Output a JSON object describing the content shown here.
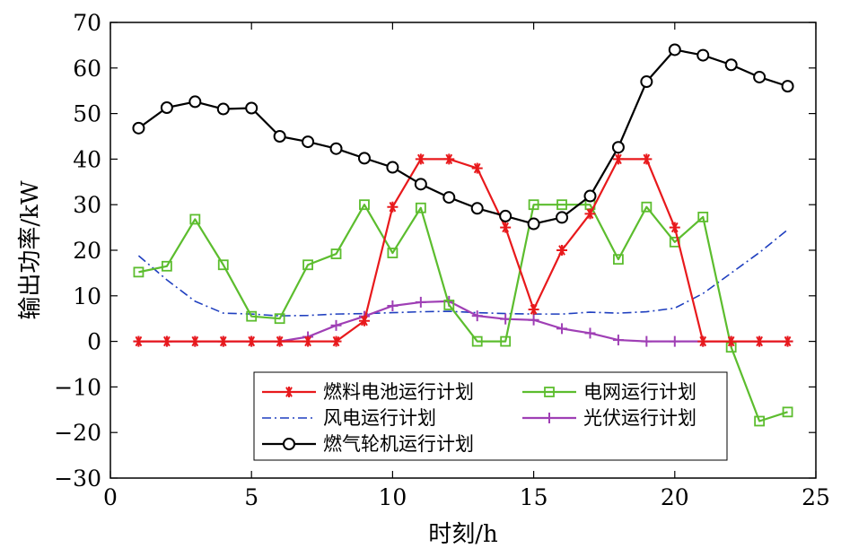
{
  "chart_data": {
    "type": "line",
    "xlabel": "时刻/h",
    "ylabel": "输出功率/kW",
    "xlim": [
      0,
      25
    ],
    "ylim": [
      -30,
      70
    ],
    "xticks": [
      0,
      5,
      10,
      15,
      20,
      25
    ],
    "yticks": [
      -30,
      -20,
      -10,
      0,
      10,
      20,
      30,
      40,
      50,
      60,
      70
    ],
    "grid": false,
    "legend_position": "bottom-center",
    "x": [
      1,
      2,
      3,
      4,
      5,
      6,
      7,
      8,
      9,
      10,
      11,
      12,
      13,
      14,
      15,
      16,
      17,
      18,
      19,
      20,
      21,
      22,
      23,
      24
    ],
    "series": [
      {
        "name": "燃料电池运行计划",
        "color": "#e8191c",
        "marker": "asterisk",
        "line": "solid",
        "values": [
          0,
          0,
          0,
          0,
          0,
          0,
          0,
          0,
          4.5,
          29.5,
          40,
          40,
          38,
          25,
          7,
          20,
          28,
          40,
          40,
          25,
          0,
          0,
          0,
          0
        ]
      },
      {
        "name": "电网运行计划",
        "color": "#5cbd2e",
        "marker": "square",
        "line": "solid",
        "values": [
          15.2,
          16.5,
          26.8,
          16.8,
          5.5,
          5,
          16.8,
          19.2,
          30,
          19.4,
          29.3,
          8,
          0,
          0,
          30,
          30,
          30,
          18,
          29.5,
          21.8,
          27.3,
          -1.3,
          -17.5,
          -15.5
        ]
      },
      {
        "name": "风电运行计划",
        "color": "#1f3fbf",
        "marker": "none",
        "line": "dashdot",
        "values": [
          18.8,
          13.5,
          8.8,
          6.2,
          6,
          5.6,
          5.7,
          6,
          6.1,
          6.3,
          6.5,
          6.6,
          6.3,
          6.1,
          6,
          6,
          6.4,
          6.2,
          6.5,
          7.3,
          10.5,
          15,
          19.5,
          24.5
        ]
      },
      {
        "name": "光伏运行计划",
        "color": "#9f3fb5",
        "marker": "plus",
        "line": "solid",
        "values": [
          0,
          0,
          0,
          0,
          0,
          0,
          1,
          3.5,
          5.5,
          7.8,
          8.6,
          8.8,
          5.6,
          4.9,
          4.7,
          2.8,
          1.8,
          0.3,
          0,
          0,
          0,
          0,
          0,
          0
        ]
      },
      {
        "name": "燃气轮机运行计划",
        "color": "#000000",
        "marker": "circle",
        "line": "solid",
        "values": [
          46.8,
          51.3,
          52.6,
          51,
          51.2,
          45,
          43.8,
          42.3,
          40.2,
          38.2,
          34.5,
          31.6,
          29.2,
          27.5,
          25.8,
          27.2,
          31.9,
          42.6,
          57,
          64,
          62.8,
          60.7,
          58,
          56
        ]
      }
    ],
    "legend_order": [
      0,
      1,
      2,
      3,
      4
    ]
  }
}
